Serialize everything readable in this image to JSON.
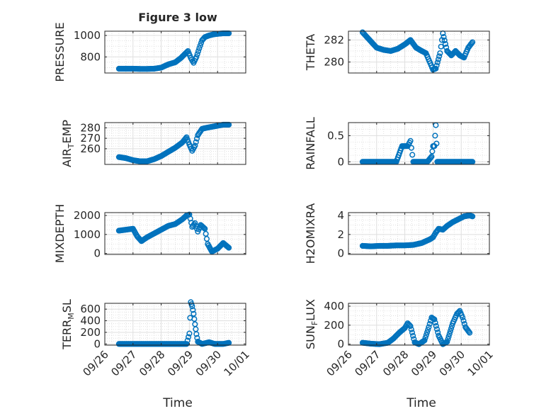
{
  "title": "Figure 3 low",
  "xlabel": "Time",
  "date_ticks": [
    "09/26",
    "09/27",
    "09/28",
    "09/29",
    "09/30",
    "10/01"
  ],
  "marker_color": "#0072bd",
  "chart_data": [
    {
      "type": "scatter",
      "ylabel": "PRESSURE",
      "xlim": [
        "09/26",
        "10/01"
      ],
      "ylim": [
        650,
        1040
      ],
      "yticks": [
        "800",
        "1000"
      ],
      "ytick_values": [
        800,
        1000
      ],
      "grid": true,
      "x": [
        0.5,
        0.75,
        1.0,
        1.25,
        1.5,
        1.75,
        2.0,
        2.25,
        2.5,
        2.7,
        2.85,
        2.95,
        3.05,
        3.15,
        3.25,
        3.35,
        3.45,
        3.55,
        3.7,
        3.85,
        4.0,
        4.2,
        4.4
      ],
      "y": [
        690,
        690,
        690,
        688,
        688,
        690,
        700,
        730,
        750,
        790,
        830,
        855,
        790,
        745,
        800,
        880,
        955,
        985,
        1000,
        1010,
        1015,
        1020,
        1020
      ]
    },
    {
      "type": "scatter",
      "ylabel": "THETA",
      "xlim": [
        "09/26",
        "10/01"
      ],
      "ylim": [
        279.0,
        282.8
      ],
      "yticks": [
        "280",
        "282"
      ],
      "ytick_values": [
        280,
        282
      ],
      "grid": true,
      "x": [
        0.5,
        0.75,
        1.0,
        1.25,
        1.5,
        1.75,
        2.0,
        2.2,
        2.4,
        2.6,
        2.75,
        2.9,
        3.0,
        3.1,
        3.25,
        3.35,
        3.5,
        3.65,
        3.8,
        3.95,
        4.1,
        4.25,
        4.4
      ],
      "y": [
        282.7,
        282.0,
        281.3,
        281.1,
        281.0,
        281.2,
        281.6,
        282.0,
        281.3,
        281.0,
        280.8,
        279.9,
        279.3,
        279.4,
        280.8,
        282.6,
        281.0,
        280.6,
        281.0,
        280.6,
        280.4,
        281.3,
        281.8
      ]
    },
    {
      "type": "scatter",
      "ylabel": "AIR_TEMP",
      "xlim": [
        "09/26",
        "10/01"
      ],
      "ylim": [
        245,
        285
      ],
      "yticks": [
        "260",
        "270",
        "280"
      ],
      "ytick_values": [
        260,
        270,
        280
      ],
      "grid": true,
      "x": [
        0.5,
        0.75,
        1.0,
        1.25,
        1.5,
        1.75,
        2.0,
        2.25,
        2.5,
        2.75,
        2.9,
        3.0,
        3.1,
        3.2,
        3.3,
        3.45,
        3.6,
        3.8,
        4.0,
        4.2,
        4.4
      ],
      "y": [
        252,
        251,
        249,
        248,
        248,
        250,
        253,
        257,
        261,
        266,
        271,
        264,
        258,
        263,
        273,
        279,
        280,
        281,
        282,
        283,
        283
      ]
    },
    {
      "type": "scatter",
      "ylabel": "RAINFALL",
      "xlim": [
        "09/26",
        "10/01"
      ],
      "ylim": [
        -0.05,
        0.75
      ],
      "yticks": [
        "0",
        "0.5"
      ],
      "ytick_values": [
        0,
        0.5
      ],
      "grid": true,
      "x": [
        0.5,
        0.8,
        1.1,
        1.4,
        1.7,
        1.9,
        2.0,
        2.1,
        2.2,
        2.3,
        2.5,
        2.8,
        2.95,
        3.0,
        3.05,
        3.1,
        3.15,
        3.3,
        3.6,
        3.9,
        4.2,
        4.4
      ],
      "y": [
        0,
        0,
        0,
        0,
        0,
        0.3,
        0.3,
        0.3,
        0.4,
        0,
        0,
        0,
        0.1,
        0.3,
        0.3,
        0.7,
        0,
        0,
        0,
        0,
        0,
        0
      ]
    },
    {
      "type": "scatter",
      "ylabel": "MIXDEPTH",
      "xlim": [
        "09/26",
        "10/01"
      ],
      "ylim": [
        -50,
        2150
      ],
      "yticks": [
        "0",
        "1000",
        "2000"
      ],
      "ytick_values": [
        0,
        1000,
        2000
      ],
      "grid": true,
      "x": [
        0.5,
        0.75,
        1.0,
        1.15,
        1.3,
        1.5,
        1.75,
        2.0,
        2.25,
        2.5,
        2.75,
        2.9,
        3.0,
        3.1,
        3.2,
        3.3,
        3.4,
        3.55,
        3.65,
        3.8,
        4.0,
        4.2,
        4.4
      ],
      "y": [
        1200,
        1250,
        1300,
        900,
        650,
        850,
        1050,
        1250,
        1450,
        1550,
        1800,
        2000,
        2050,
        1400,
        1600,
        1150,
        1500,
        1300,
        500,
        100,
        250,
        550,
        300
      ]
    },
    {
      "type": "scatter",
      "ylabel": "H2OMIXRA",
      "xlim": [
        "09/26",
        "10/01"
      ],
      "ylim": [
        -0.1,
        4.3
      ],
      "yticks": [
        "0",
        "2",
        "4"
      ],
      "ytick_values": [
        0,
        2,
        4
      ],
      "grid": true,
      "x": [
        0.5,
        0.8,
        1.1,
        1.4,
        1.7,
        2.0,
        2.3,
        2.6,
        2.9,
        3.0,
        3.1,
        3.2,
        3.35,
        3.5,
        3.7,
        3.9,
        4.1,
        4.3,
        4.4
      ],
      "y": [
        0.8,
        0.75,
        0.8,
        0.8,
        0.85,
        0.85,
        0.9,
        1.1,
        1.5,
        1.7,
        2.2,
        2.6,
        2.5,
        2.9,
        3.3,
        3.6,
        3.9,
        4.0,
        3.9
      ]
    },
    {
      "type": "scatter",
      "ylabel": "TERR_MSL",
      "xlim": [
        "09/26",
        "10/01"
      ],
      "ylim": [
        -20,
        700
      ],
      "yticks": [
        "0",
        "200",
        "400",
        "600"
      ],
      "ytick_values": [
        0,
        200,
        400,
        600
      ],
      "grid": true,
      "x": [
        0.5,
        1.0,
        1.5,
        2.0,
        2.5,
        2.9,
        3.0,
        3.05,
        3.1,
        3.15,
        3.2,
        3.25,
        3.3,
        3.45,
        3.7,
        3.9,
        4.2,
        4.4
      ],
      "y": [
        0,
        0,
        0,
        0,
        0,
        0,
        180,
        720,
        650,
        520,
        340,
        170,
        40,
        0,
        30,
        0,
        0,
        20
      ]
    },
    {
      "type": "scatter",
      "ylabel": "SUN_FLUX",
      "xlim": [
        "09/26",
        "10/01"
      ],
      "ylim": [
        -10,
        430
      ],
      "yticks": [
        "0",
        "200",
        "400"
      ],
      "ytick_values": [
        0,
        200,
        400
      ],
      "grid": true,
      "x": [
        0.5,
        0.8,
        1.1,
        1.4,
        1.6,
        1.8,
        2.0,
        2.1,
        2.2,
        2.35,
        2.5,
        2.7,
        2.85,
        2.95,
        3.05,
        3.2,
        3.35,
        3.5,
        3.7,
        3.85,
        3.95,
        4.05,
        4.15,
        4.3
      ],
      "y": [
        15,
        5,
        0,
        15,
        60,
        120,
        170,
        220,
        190,
        20,
        0,
        40,
        180,
        280,
        260,
        90,
        0,
        25,
        220,
        320,
        350,
        280,
        180,
        120
      ]
    }
  ]
}
